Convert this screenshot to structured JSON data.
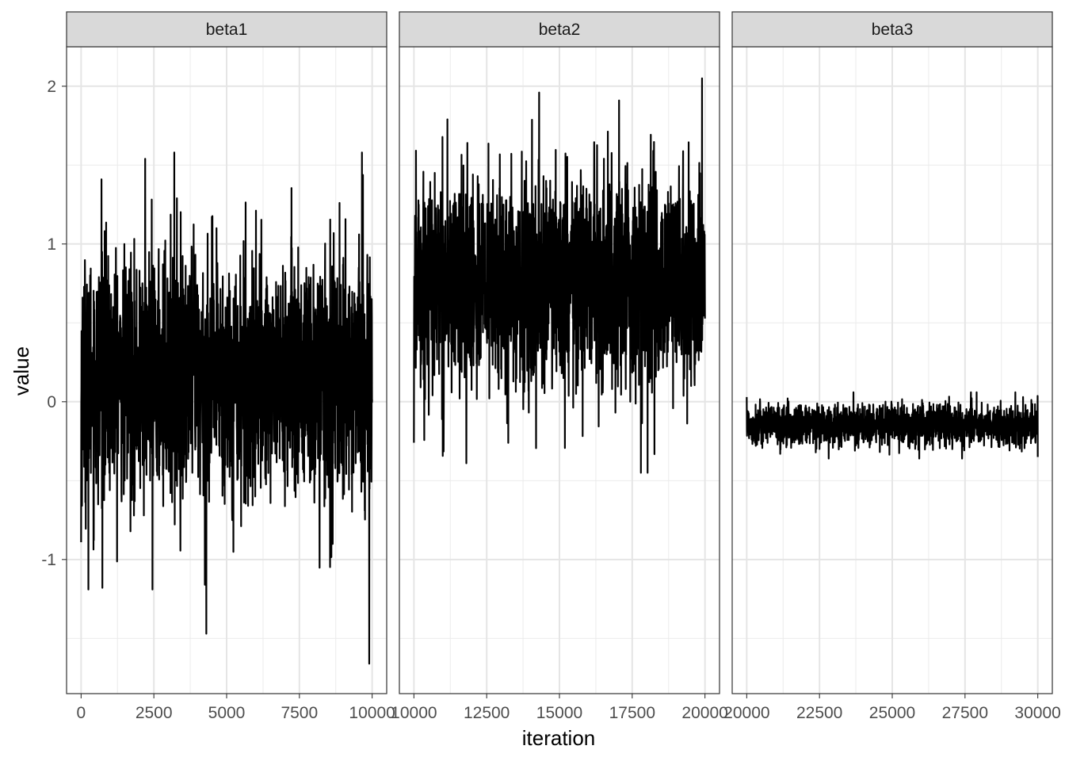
{
  "chart_data": {
    "type": "line",
    "xlabel": "iteration",
    "ylabel": "value",
    "ylim": [
      -1.85,
      2.25
    ],
    "y_ticks": [
      -1,
      0,
      1,
      2
    ],
    "y_tick_labels": [
      "-1",
      "0",
      "1",
      "2"
    ],
    "grid": true,
    "line_color": "#000000",
    "panels": [
      {
        "name": "beta1",
        "xlim": [
          -500,
          10500
        ],
        "x_ticks": [
          0,
          2500,
          5000,
          7500,
          10000
        ],
        "x_tick_labels": [
          "0",
          "2500",
          "5000",
          "7500",
          "10000"
        ],
        "series": {
          "x_start": 0,
          "x_end": 10000,
          "n_points": 2000,
          "mean": 0.15,
          "sd": 0.38,
          "min": -1.66,
          "max": 1.58,
          "extremes": [
            [
              0,
              -0.89
            ],
            [
              250,
              -1.19
            ],
            [
              700,
              1.41
            ],
            [
              2200,
              1.54
            ],
            [
              2450,
              -1.19
            ],
            [
              3200,
              1.58
            ],
            [
              4250,
              -1.16
            ],
            [
              4300,
              -1.47
            ],
            [
              9650,
              1.58
            ],
            [
              9900,
              -1.66
            ]
          ]
        }
      },
      {
        "name": "beta2",
        "xlim": [
          9500,
          20500
        ],
        "x_ticks": [
          10000,
          12500,
          15000,
          17500,
          20000
        ],
        "x_tick_labels": [
          "10000",
          "12500",
          "15000",
          "17500",
          "20000"
        ],
        "series": {
          "x_start": 10000,
          "x_end": 20000,
          "n_points": 2000,
          "mean": 0.75,
          "sd": 0.33,
          "min": -0.45,
          "max": 2.05,
          "extremes": [
            [
              10000,
              -0.26
            ],
            [
              11150,
              1.79
            ],
            [
              11800,
              -0.39
            ],
            [
              14300,
              1.96
            ],
            [
              17050,
              1.91
            ],
            [
              17800,
              -0.45
            ],
            [
              19900,
              2.05
            ]
          ]
        }
      },
      {
        "name": "beta3",
        "xlim": [
          19500,
          30500
        ],
        "x_ticks": [
          20000,
          22500,
          25000,
          27500,
          30000
        ],
        "x_tick_labels": [
          "20000",
          "22500",
          "25000",
          "27500",
          "30000"
        ],
        "series": {
          "x_start": 20000,
          "x_end": 30000,
          "n_points": 2000,
          "mean": -0.15,
          "sd": 0.065,
          "min": -0.36,
          "max": 0.06,
          "extremes": [
            [
              20000,
              0.03
            ],
            [
              21150,
              -0.33
            ],
            [
              27400,
              -0.36
            ],
            [
              27900,
              0.06
            ],
            [
              30000,
              -0.35
            ]
          ]
        }
      }
    ]
  }
}
